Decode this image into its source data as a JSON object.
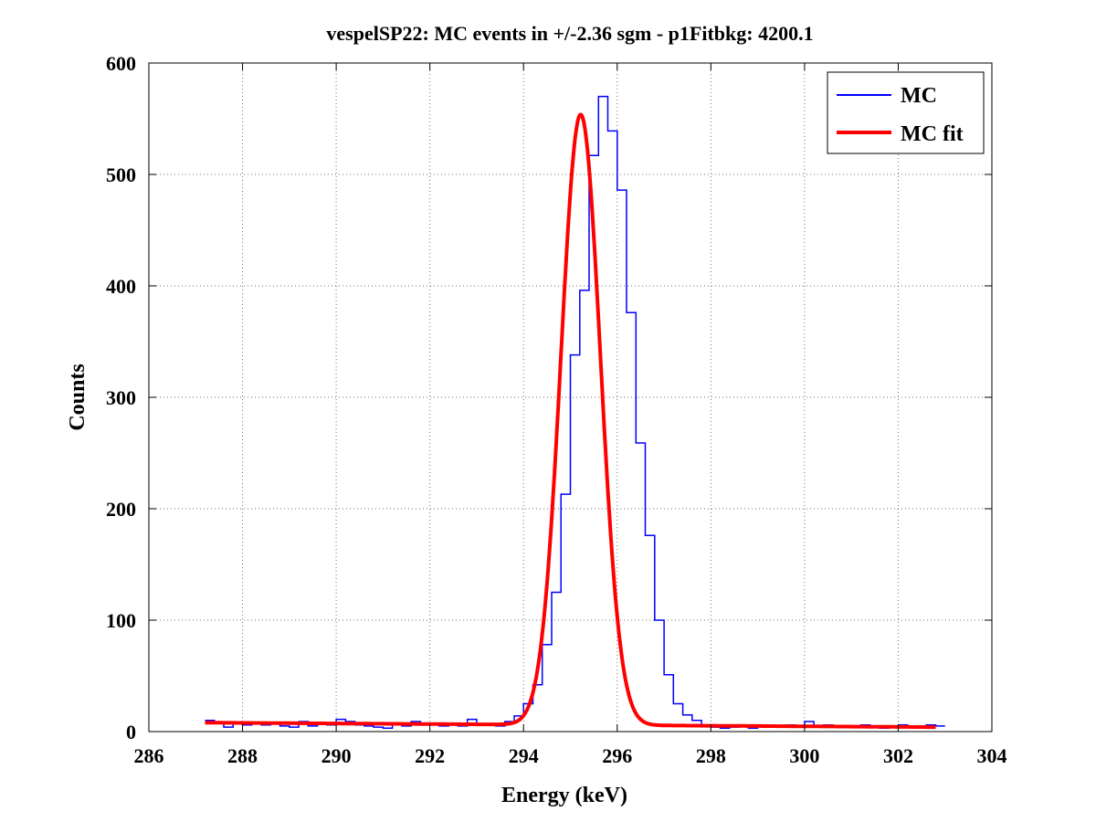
{
  "chart_data": {
    "type": "line",
    "title": "vespelSP22: MC events in +/-2.36 sgm - p1Fitbkg: 4200.1",
    "xlabel": "Energy (keV)",
    "ylabel": "Counts",
    "xlim": [
      286,
      304
    ],
    "ylim": [
      0,
      600
    ],
    "xticks": [
      286,
      288,
      290,
      292,
      294,
      296,
      298,
      300,
      302,
      304
    ],
    "yticks": [
      0,
      100,
      200,
      300,
      400,
      500,
      600
    ],
    "grid": true,
    "legend_position": "top-right",
    "series": [
      {
        "name": "MC",
        "style": "stairs",
        "color": "#0000ff",
        "x": [
          287.2,
          287.4,
          287.6,
          287.8,
          288.0,
          288.2,
          288.4,
          288.6,
          288.8,
          289.0,
          289.2,
          289.4,
          289.6,
          289.8,
          290.0,
          290.2,
          290.4,
          290.6,
          290.8,
          291.0,
          291.2,
          291.4,
          291.6,
          291.8,
          292.0,
          292.2,
          292.4,
          292.6,
          292.8,
          293.0,
          293.2,
          293.4,
          293.6,
          293.8,
          294.0,
          294.2,
          294.4,
          294.6,
          294.8,
          295.0,
          295.2,
          295.4,
          295.6,
          295.8,
          296.0,
          296.2,
          296.4,
          296.6,
          296.8,
          297.0,
          297.2,
          297.4,
          297.6,
          297.8,
          298.0,
          298.2,
          298.4,
          298.6,
          298.8,
          299.0,
          299.2,
          299.4,
          299.6,
          299.8,
          300.0,
          300.2,
          300.4,
          300.6,
          300.8,
          301.0,
          301.2,
          301.4,
          301.6,
          301.8,
          302.0,
          302.2,
          302.4,
          302.6,
          302.8
        ],
        "values": [
          10,
          8,
          4,
          7,
          6,
          7,
          6,
          8,
          5,
          4,
          9,
          5,
          7,
          6,
          11,
          9,
          6,
          5,
          4,
          3,
          6,
          5,
          9,
          7,
          6,
          5,
          6,
          5,
          11,
          7,
          6,
          5,
          9,
          14,
          25,
          42,
          78,
          125,
          213,
          338,
          396,
          517,
          570,
          539,
          486,
          376,
          259,
          176,
          100,
          51,
          25,
          15,
          10,
          6,
          4,
          3,
          4,
          5,
          3,
          5,
          4,
          5,
          6,
          4,
          9,
          4,
          6,
          5,
          4,
          5,
          6,
          5,
          3,
          4,
          6,
          4,
          5,
          6,
          5
        ]
      },
      {
        "name": "MC fit",
        "style": "line",
        "color": "#ff0000",
        "fit": {
          "amplitude": 548,
          "center": 295.22,
          "sigma": 0.42,
          "bkg_start": 8,
          "bkg_end": 4
        },
        "x": [
          287.2,
          302.8
        ]
      }
    ]
  }
}
